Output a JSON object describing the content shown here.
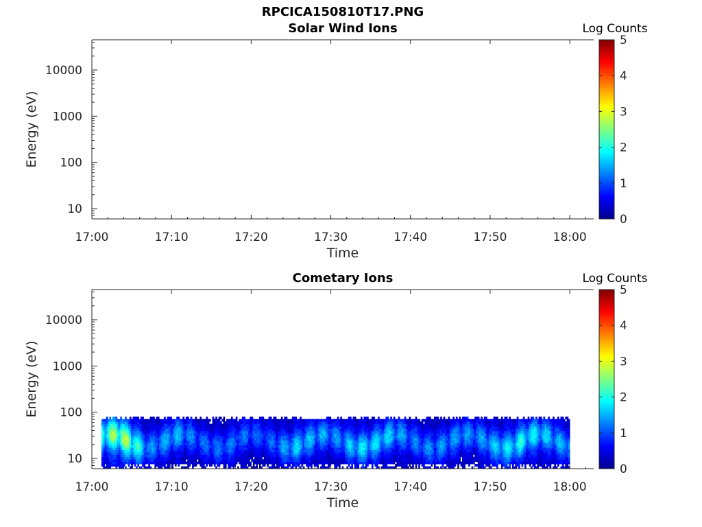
{
  "figure": {
    "title": "RPCICA150810T17.PNG"
  },
  "chart_data": [
    {
      "type": "heatmap",
      "title": "Solar Wind Ions",
      "xlabel": "Time",
      "ylabel": "Energy (eV)",
      "x_ticks": [
        "17:00",
        "17:10",
        "17:20",
        "17:30",
        "17:40",
        "17:50",
        "18:00"
      ],
      "x_range_minutes": [
        0,
        63
      ],
      "y_scale": "log",
      "y_ticks": [
        "10",
        "100",
        "1000",
        "10000"
      ],
      "y_range": [
        6,
        45000
      ],
      "colorbar": {
        "label": "Log Counts",
        "ticks": [
          "0",
          "1",
          "2",
          "3",
          "4",
          "5"
        ],
        "range": [
          0,
          5
        ],
        "colormap": "jet"
      },
      "data": []
    },
    {
      "type": "heatmap",
      "title": "Cometary Ions",
      "xlabel": "Time",
      "ylabel": "Energy (eV)",
      "x_ticks": [
        "17:00",
        "17:10",
        "17:20",
        "17:30",
        "17:40",
        "17:50",
        "18:00"
      ],
      "x_range_minutes": [
        0,
        63
      ],
      "y_scale": "log",
      "y_ticks": [
        "10",
        "100",
        "1000",
        "10000"
      ],
      "y_range": [
        6,
        45000
      ],
      "colorbar": {
        "label": "Log Counts",
        "ticks": [
          "0",
          "1",
          "2",
          "3",
          "4",
          "5"
        ],
        "range": [
          0,
          5
        ],
        "colormap": "jet"
      },
      "data_extent": {
        "time_start_minutes": 1.2,
        "time_end_minutes": 60.0,
        "energy_min_eV": 6,
        "energy_max_eV": 80
      },
      "intensity_profile": [
        {
          "t": 1.5,
          "peak_log_counts": 2.4
        },
        {
          "t": 3.0,
          "peak_log_counts": 3.0
        },
        {
          "t": 4.5,
          "peak_log_counts": 2.9
        },
        {
          "t": 7.0,
          "peak_log_counts": 1.4
        },
        {
          "t": 10.5,
          "peak_log_counts": 1.7
        },
        {
          "t": 13.0,
          "peak_log_counts": 1.2
        },
        {
          "t": 18.0,
          "peak_log_counts": 1.3
        },
        {
          "t": 22.0,
          "peak_log_counts": 1.1
        },
        {
          "t": 25.5,
          "peak_log_counts": 1.8
        },
        {
          "t": 28.0,
          "peak_log_counts": 1.6
        },
        {
          "t": 30.5,
          "peak_log_counts": 1.4
        },
        {
          "t": 33.5,
          "peak_log_counts": 1.9
        },
        {
          "t": 37.0,
          "peak_log_counts": 1.8
        },
        {
          "t": 40.0,
          "peak_log_counts": 1.3
        },
        {
          "t": 45.0,
          "peak_log_counts": 1.5
        },
        {
          "t": 48.0,
          "peak_log_counts": 1.4
        },
        {
          "t": 52.5,
          "peak_log_counts": 2.0
        },
        {
          "t": 54.0,
          "peak_log_counts": 2.1
        },
        {
          "t": 58.5,
          "peak_log_counts": 1.6
        }
      ]
    }
  ]
}
